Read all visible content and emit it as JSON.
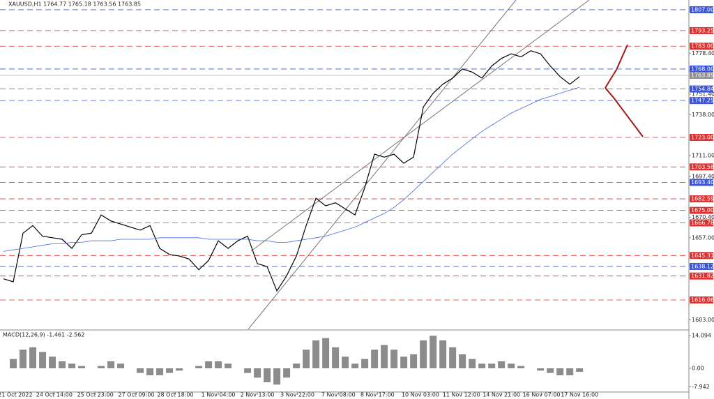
{
  "chart_data": [
    {
      "type": "line",
      "title": "XAUUSD,H1  1764.77 1765.18 1763.56 1763.85",
      "xlim": [
        -0.36,
        70.2
      ],
      "xticks": [
        {
          "value": 1.2,
          "label": "21 Oct 2022"
        },
        {
          "value": 5.2,
          "label": "24 Oct 14:00"
        },
        {
          "value": 9.4,
          "label": "25 Oct 23:00"
        },
        {
          "value": 13.6,
          "label": "27 Oct 09:00"
        },
        {
          "value": 17.6,
          "label": "28 Oct 18:00"
        },
        {
          "value": 22,
          "label": "1 Nov 04:00"
        },
        {
          "value": 26,
          "label": "2 Nov 13:00"
        },
        {
          "value": 30.1,
          "label": "3 Nov 22:00"
        },
        {
          "value": 34.3,
          "label": "7 Nov 08:00"
        },
        {
          "value": 38.3,
          "label": "8 Nov 17:00"
        },
        {
          "value": 42.7,
          "label": "10 Nov 03:00"
        },
        {
          "value": 46.9,
          "label": "11 Nov 12:00"
        },
        {
          "value": 51,
          "label": "14 Nov 21:00"
        },
        {
          "value": 55.1,
          "label": "16 Nov 07:00"
        },
        {
          "value": 59,
          "label": "17 Nov 16:00"
        }
      ],
      "ylim": [
        1596.8,
        1813.4
      ],
      "yticks": [
        {
          "value": 1778.4,
          "label": "1778.40"
        },
        {
          "value": 1751.4,
          "label": "1751.40"
        },
        {
          "value": 1738,
          "label": "1738.00"
        },
        {
          "value": 1711,
          "label": "1711.00"
        },
        {
          "value": 1697.4,
          "label": "1697.40"
        },
        {
          "value": 1670.4,
          "label": "1670.40"
        },
        {
          "value": 1657,
          "label": "1657.00"
        },
        {
          "value": 1603,
          "label": "1603.00"
        }
      ],
      "series": [
        {
          "color": "#000000",
          "values": [
            1630,
            1628,
            1660,
            1665,
            1658,
            1657,
            1656,
            1650,
            1659,
            1660,
            1672,
            1668,
            1666,
            1664,
            1662,
            1665,
            1650,
            1646,
            1645,
            1643,
            1636,
            1642,
            1655,
            1650,
            1655,
            1658,
            1640,
            1638,
            1622,
            1632,
            1645,
            1665,
            1683,
            1678,
            1680,
            1676,
            1672,
            1690,
            1712,
            1710,
            1712,
            1706,
            1710,
            1743,
            1752,
            1758,
            1762,
            1768,
            1766,
            1762,
            1770,
            1775,
            1778,
            1776,
            1780,
            1778,
            1770,
            1763,
            1758,
            1763
          ]
        },
        {
          "color": "#4169e1",
          "values": [
            1648,
            1649,
            1650,
            1651,
            1652,
            1653,
            1653,
            1654,
            1654,
            1655,
            1655,
            1655,
            1656,
            1656,
            1656,
            1656,
            1657,
            1657,
            1657,
            1657,
            1657,
            1656,
            1656,
            1656,
            1656,
            1656,
            1655,
            1655,
            1654,
            1654,
            1655,
            1656,
            1657,
            1658,
            1660,
            1662,
            1664,
            1667,
            1670,
            1673,
            1677,
            1682,
            1688,
            1694,
            1700,
            1706,
            1712,
            1717,
            1722,
            1727,
            1731,
            1735,
            1739,
            1742,
            1745,
            1748,
            1750,
            1752,
            1754,
            1756
          ]
        }
      ],
      "levels": [
        {
          "value": 1807,
          "label": "1807.00",
          "color": "#3a55d9"
        },
        {
          "value": 1793.25,
          "label": "1793.25",
          "color": "#e03030"
        },
        {
          "value": 1783,
          "label": "1783.00",
          "color": "#e03030"
        },
        {
          "value": 1768,
          "label": "1768.00",
          "color": "#3a55d9"
        },
        {
          "value": 1754.84,
          "label": "1754.84",
          "color": "#3a55d9"
        },
        {
          "value": 1747.25,
          "label": "1747.25",
          "color": "#3a55d9"
        },
        {
          "value": 1723,
          "label": "1723.00",
          "color": "#e03030"
        },
        {
          "value": 1703.58,
          "label": "1703.58",
          "color": "#e03030"
        },
        {
          "value": 1693.4,
          "label": "1693.40",
          "color": "#3a55d9"
        },
        {
          "value": 1682.59,
          "label": "1682.59",
          "color": "#e03030"
        },
        {
          "value": 1675,
          "label": "1675.00",
          "color": "#e03030"
        },
        {
          "value": 1666.78,
          "label": "1666.78",
          "color": "#e03030"
        },
        {
          "value": 1645.31,
          "label": "1645.31",
          "color": "#e03030"
        },
        {
          "value": 1638.12,
          "label": "1638.12",
          "color": "#3a55d9"
        },
        {
          "value": 1631.82,
          "label": "1631.82",
          "color": "#e03030"
        },
        {
          "value": 1616.06,
          "label": "1616.06",
          "color": "#e03030"
        }
      ],
      "last": {
        "value": 1763.85,
        "label": "1763.85",
        "color": "#909090"
      }
    },
    {
      "type": "bar",
      "title": "MACD(12,26,9) -1.461 -2.562",
      "color": "#8c8c8c",
      "ylim": [
        -10.2,
        16.2
      ],
      "yticks": [
        14.094,
        {
          "value": 0,
          "label": "0.00"
        },
        -7.942
      ],
      "values": [
        0,
        4,
        8,
        9,
        7,
        5,
        3,
        2,
        1,
        0,
        1,
        3,
        2,
        0,
        -2,
        -3,
        -3,
        -2,
        -1,
        0,
        1,
        3,
        3,
        2,
        0,
        -2,
        -4,
        -6,
        -7,
        -4,
        2,
        8,
        12,
        13,
        9,
        5,
        2,
        4,
        8,
        10,
        8,
        5,
        6,
        12,
        14,
        12,
        9,
        6,
        4,
        2,
        2,
        3,
        2,
        1,
        0,
        -1,
        -2,
        -3,
        -3,
        -1.5
      ]
    }
  ]
}
